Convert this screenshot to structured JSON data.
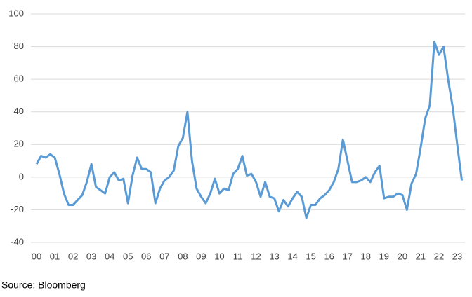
{
  "chart_data": {
    "type": "line",
    "categories": [
      "00",
      null,
      null,
      null,
      "01",
      null,
      null,
      null,
      "02",
      null,
      null,
      null,
      "03",
      null,
      null,
      null,
      "04",
      null,
      null,
      null,
      "05",
      null,
      null,
      null,
      "06",
      null,
      null,
      null,
      "07",
      null,
      null,
      null,
      "08",
      null,
      null,
      null,
      "09",
      null,
      null,
      null,
      "10",
      null,
      null,
      null,
      "11",
      null,
      null,
      null,
      "12",
      null,
      null,
      null,
      "13",
      null,
      null,
      null,
      "14",
      null,
      null,
      null,
      "15",
      null,
      null,
      null,
      "16",
      null,
      null,
      null,
      "17",
      null,
      null,
      null,
      "18",
      null,
      null,
      null,
      "19",
      null,
      null,
      null,
      "20",
      null,
      null,
      null,
      "21",
      null,
      null,
      null,
      "22",
      null,
      null,
      null,
      "23",
      null
    ],
    "series": [
      {
        "color": "#5b9bd5",
        "values": [
          8,
          13,
          12,
          14,
          12,
          2,
          -10,
          -17,
          -17,
          -14,
          -11,
          -3,
          8,
          -6,
          -8,
          -10,
          0,
          3,
          -2,
          -1,
          -16,
          1,
          12,
          5,
          5,
          3,
          -16,
          -7,
          -2,
          0,
          4,
          19,
          24,
          40,
          10,
          -7,
          -12,
          -16,
          -10,
          -1,
          -10,
          -7,
          -8,
          2,
          5,
          13,
          1,
          2,
          -3,
          -12,
          -3,
          -12,
          -13,
          -21,
          -14,
          -18,
          -13,
          -9,
          -12,
          -25,
          -17,
          -17,
          -13,
          -11,
          -8,
          -3,
          5,
          23,
          10,
          -3,
          -3,
          -2,
          0,
          -3,
          3,
          7,
          -13,
          -12,
          -12,
          -10,
          -11,
          -20,
          -4,
          2,
          18,
          36,
          44,
          83,
          75,
          80,
          60,
          43,
          20,
          -2
        ]
      }
    ],
    "ylim": [
      -40,
      100
    ],
    "yticks": [
      -40,
      -20,
      0,
      20,
      40,
      60,
      80,
      100
    ],
    "grid": true,
    "source": "Source: Bloomberg"
  }
}
